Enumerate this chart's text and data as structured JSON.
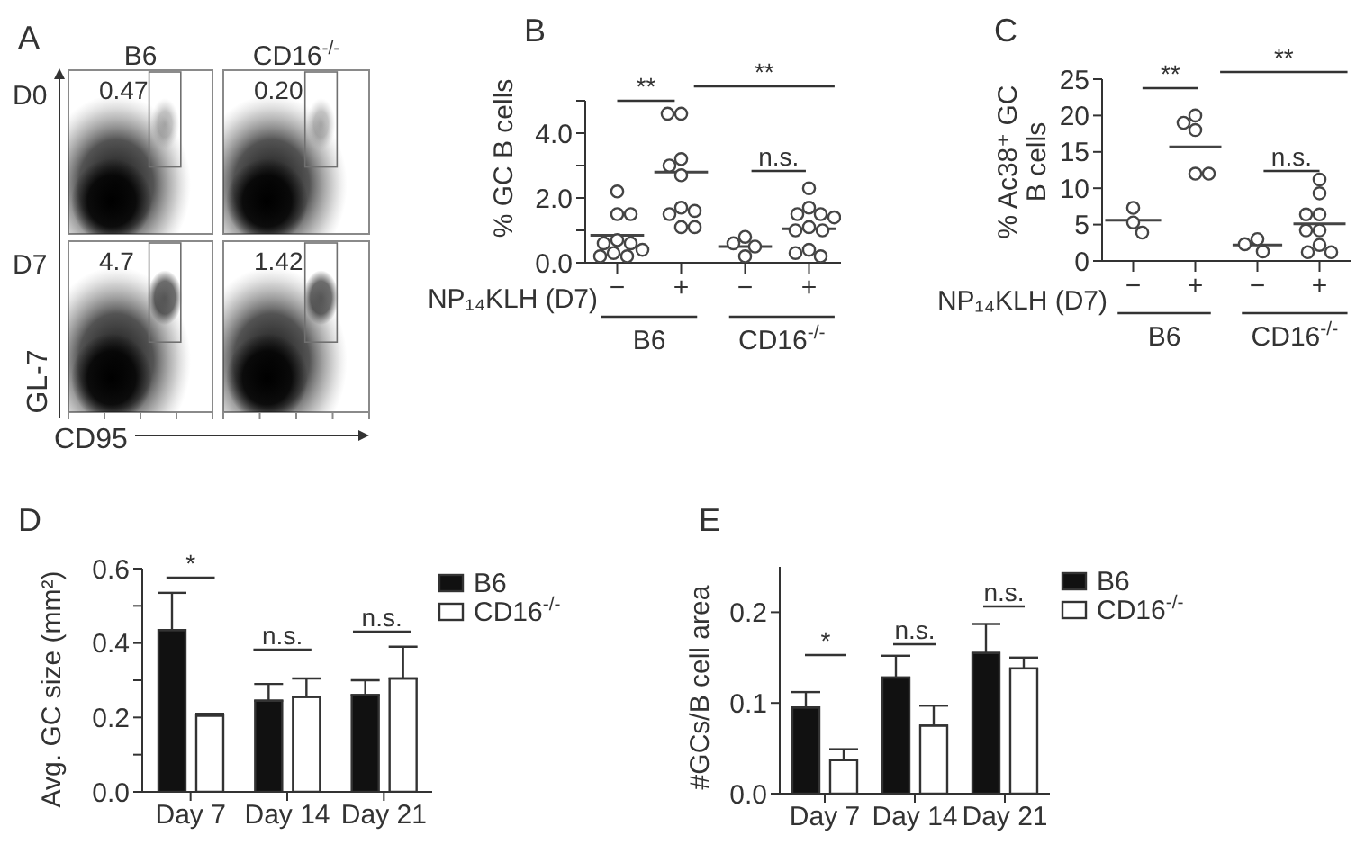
{
  "chart_data": [
    {
      "type": "other",
      "title": "A",
      "categories": [
        "B6",
        "CD16$^{-/-}$"
      ],
      "y_categories": [
        "D0",
        "D7"
      ],
      "xlabel": "CD95",
      "ylabel": "GL-7",
      "annotations": [
        "0.47",
        "0.20",
        "4.7",
        "1.42"
      ]
    },
    {
      "type": "scatter",
      "title": "B",
      "ylabel": "% GC B cells",
      "xlabel": "NP₁₄KLH (D7)",
      "categories": [
        "−",
        "+",
        "−",
        "+"
      ],
      "ylim": [
        0,
        5
      ],
      "yticks": [
        {
          "value": 0,
          "label": "0.0"
        },
        {
          "value": 1,
          "label": null
        },
        {
          "value": 2,
          "label": "2.0"
        },
        {
          "value": 3,
          "label": null
        },
        {
          "value": 4,
          "label": "4.0"
        },
        {
          "value": 5,
          "label": null
        }
      ],
      "annotations": [
        "**",
        "**",
        "n.s.",
        "B6",
        "CD16$^{-/-}$"
      ],
      "ref_lines": [
        {
          "axis": "y",
          "value": 0.85,
          "color": "#444444"
        },
        {
          "axis": "y",
          "value": 2.8,
          "color": "#444444"
        },
        {
          "axis": "y",
          "value": 0.5,
          "color": "#444444"
        },
        {
          "axis": "y",
          "value": 1.05,
          "color": "#444444"
        }
      ],
      "series": [
        {
          "color": "#444444",
          "marker": "circle",
          "values": [
            2.2,
            4.6,
            0.8,
            2.3
          ]
        },
        {
          "color": "#444444",
          "marker": "circle",
          "values": [
            1.5,
            4.6,
            0.6,
            1.7
          ]
        },
        {
          "color": "#444444",
          "marker": "circle",
          "values": [
            1.5,
            3.2,
            0.5,
            1.5
          ]
        },
        {
          "color": "#444444",
          "marker": "circle",
          "values": [
            0.7,
            3.0,
            0.2,
            1.5
          ]
        },
        {
          "color": "#444444",
          "marker": "circle",
          "values": [
            0.6,
            2.7,
            null,
            1.4
          ]
        },
        {
          "color": "#444444",
          "marker": "circle",
          "values": [
            0.6,
            1.7,
            null,
            1.1
          ]
        },
        {
          "color": "#444444",
          "marker": "circle",
          "values": [
            0.4,
            1.6,
            null,
            1.0
          ]
        },
        {
          "color": "#444444",
          "marker": "circle",
          "values": [
            0.3,
            1.5,
            null,
            1.0
          ]
        },
        {
          "color": "#444444",
          "marker": "circle",
          "values": [
            0.2,
            1.1,
            null,
            0.4
          ]
        },
        {
          "color": "#444444",
          "marker": "circle",
          "values": [
            0.2,
            1.1,
            null,
            0.3
          ]
        },
        {
          "color": "#444444",
          "marker": "circle",
          "values": [
            null,
            null,
            null,
            0.2
          ]
        }
      ]
    },
    {
      "type": "scatter",
      "title": "C",
      "ylabel": "% Ac38⁺ GC B cells",
      "xlabel": "NP₁₄KLH (D7)",
      "categories": [
        "−",
        "+",
        "−",
        "+"
      ],
      "ylim": [
        0,
        25
      ],
      "yticks": [
        0,
        5,
        10,
        15,
        20,
        25
      ],
      "annotations": [
        "**",
        "**",
        "n.s.",
        "B6",
        "CD16$^{-/-}$"
      ],
      "ref_lines": [
        {
          "axis": "y",
          "value": 5.6,
          "color": "#444444"
        },
        {
          "axis": "y",
          "value": 15.7,
          "color": "#444444"
        },
        {
          "axis": "y",
          "value": 2.2,
          "color": "#444444"
        },
        {
          "axis": "y",
          "value": 5.1,
          "color": "#444444"
        }
      ],
      "series": [
        {
          "color": "#444444",
          "marker": "circle",
          "values": [
            7.3,
            20,
            3.0,
            11.2
          ]
        },
        {
          "color": "#444444",
          "marker": "circle",
          "values": [
            5.3,
            19,
            2.3,
            9.3
          ]
        },
        {
          "color": "#444444",
          "marker": "circle",
          "values": [
            3.9,
            18,
            1.3,
            6.4
          ]
        },
        {
          "color": "#444444",
          "marker": "circle",
          "values": [
            null,
            12,
            null,
            6.4
          ]
        },
        {
          "color": "#444444",
          "marker": "circle",
          "values": [
            null,
            12,
            null,
            4.2
          ]
        },
        {
          "color": "#444444",
          "marker": "circle",
          "values": [
            null,
            null,
            null,
            4.2
          ]
        },
        {
          "color": "#444444",
          "marker": "circle",
          "values": [
            null,
            null,
            null,
            2.2
          ]
        },
        {
          "color": "#444444",
          "marker": "circle",
          "values": [
            null,
            null,
            null,
            1.2
          ]
        },
        {
          "color": "#444444",
          "marker": "circle",
          "values": [
            null,
            null,
            null,
            1.2
          ]
        }
      ]
    },
    {
      "type": "bar",
      "title": "D",
      "ylabel": "Avg. GC size (mm²)",
      "categories": [
        "Day 7",
        "Day 14",
        "Day 21"
      ],
      "ylim": [
        0,
        0.6
      ],
      "yticks": [
        {
          "value": 0,
          "label": "0.0"
        },
        {
          "value": 0.1,
          "label": null
        },
        {
          "value": 0.2,
          "label": "0.2"
        },
        {
          "value": 0.3,
          "label": null
        },
        {
          "value": 0.4,
          "label": "0.4"
        },
        {
          "value": 0.5,
          "label": null
        },
        {
          "value": 0.6,
          "label": "0.6"
        }
      ],
      "legend": "top right",
      "annotations": [
        "*",
        "n.s.",
        "n.s."
      ],
      "series": [
        {
          "name": "B6",
          "color": "#111111",
          "values": [
            0.435,
            0.245,
            0.26
          ],
          "errors": [
            [
              0.435,
              0.535
            ],
            [
              0.245,
              0.29
            ],
            [
              0.26,
              0.3
            ]
          ]
        },
        {
          "name": "CD16$^{-/-}$",
          "color": "#ffffff",
          "values": [
            0.205,
            0.255,
            0.305
          ],
          "errors": [
            [
              0.205,
              0.21
            ],
            [
              0.255,
              0.305
            ],
            [
              0.305,
              0.39
            ]
          ]
        }
      ]
    },
    {
      "type": "bar",
      "title": "E",
      "ylabel": "#GCs/B cell area",
      "categories": [
        "Day 7",
        "Day 14",
        "Day 21"
      ],
      "ylim": [
        0,
        0.25
      ],
      "yticks": [
        {
          "value": 0,
          "label": "0.0"
        },
        {
          "value": 0.1,
          "label": "0.1"
        },
        {
          "value": 0.2,
          "label": "0.2"
        }
      ],
      "legend": "top right",
      "annotations": [
        "*",
        "n.s.",
        "n.s."
      ],
      "series": [
        {
          "name": "B6",
          "color": "#111111",
          "values": [
            0.095,
            0.128,
            0.155
          ],
          "errors": [
            [
              0.095,
              0.112
            ],
            [
              0.128,
              0.152
            ],
            [
              0.155,
              0.187
            ]
          ]
        },
        {
          "name": "CD16$^{-/-}$",
          "color": "#ffffff",
          "values": [
            0.037,
            0.075,
            0.138
          ],
          "errors": [
            [
              0.037,
              0.049
            ],
            [
              0.075,
              0.097
            ],
            [
              0.138,
              0.15
            ]
          ]
        }
      ]
    }
  ]
}
